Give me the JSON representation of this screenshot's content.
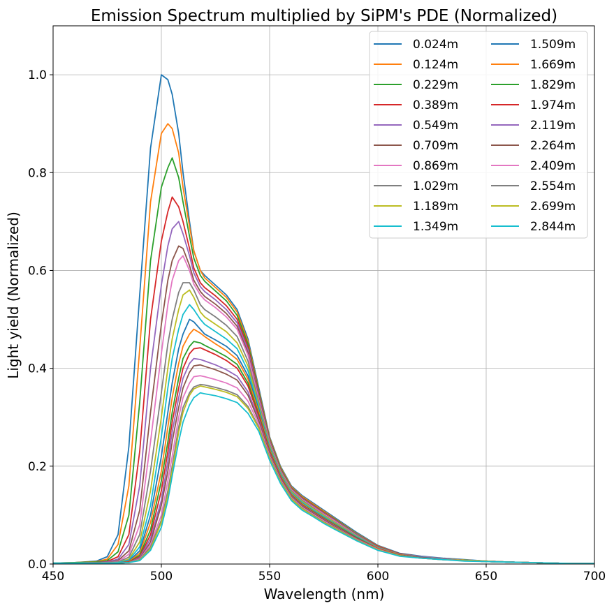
{
  "chart_data": {
    "type": "line",
    "title": "Emission Spectrum multiplied by SiPM's PDE (Normalized)",
    "xlabel": "Wavelength (nm)",
    "ylabel": "Light yield (Normalized)",
    "xlim": [
      450,
      700
    ],
    "ylim": [
      0,
      1.1
    ],
    "xticks": [
      "450",
      "500",
      "550",
      "600",
      "650",
      "700"
    ],
    "yticks": [
      "0.0",
      "0.2",
      "0.4",
      "0.6",
      "0.8",
      "1.0"
    ],
    "grid": true,
    "legend_position": "top-right",
    "legend_columns": 2,
    "x": [
      450,
      460,
      470,
      475,
      480,
      485,
      490,
      495,
      500,
      503,
      505,
      508,
      510,
      513,
      515,
      518,
      520,
      525,
      530,
      535,
      540,
      545,
      550,
      555,
      560,
      565,
      570,
      575,
      580,
      590,
      600,
      610,
      620,
      630,
      640,
      650,
      660,
      670,
      680,
      690,
      700
    ],
    "series": [
      {
        "name": "0.024m",
        "color": "#1f77b4",
        "values": [
          0.002,
          0.003,
          0.006,
          0.015,
          0.06,
          0.24,
          0.55,
          0.85,
          1.0,
          0.99,
          0.96,
          0.88,
          0.8,
          0.7,
          0.64,
          0.6,
          0.59,
          0.57,
          0.55,
          0.52,
          0.46,
          0.36,
          0.26,
          0.2,
          0.16,
          0.14,
          0.125,
          0.11,
          0.095,
          0.065,
          0.038,
          0.022,
          0.016,
          0.012,
          0.009,
          0.006,
          0.004,
          0.003,
          0.002,
          0.001,
          0.001
        ]
      },
      {
        "name": "0.124m",
        "color": "#ff7f0e",
        "values": [
          0.002,
          0.003,
          0.005,
          0.01,
          0.04,
          0.16,
          0.44,
          0.74,
          0.88,
          0.9,
          0.89,
          0.84,
          0.77,
          0.69,
          0.64,
          0.6,
          0.585,
          0.565,
          0.545,
          0.515,
          0.455,
          0.355,
          0.258,
          0.198,
          0.158,
          0.138,
          0.123,
          0.108,
          0.093,
          0.063,
          0.037,
          0.021,
          0.015,
          0.011,
          0.008,
          0.006,
          0.004,
          0.003,
          0.002,
          0.001,
          0.001
        ]
      },
      {
        "name": "0.229m",
        "color": "#2ca02c",
        "values": [
          0.002,
          0.003,
          0.004,
          0.007,
          0.025,
          0.1,
          0.33,
          0.62,
          0.77,
          0.81,
          0.83,
          0.79,
          0.74,
          0.67,
          0.625,
          0.59,
          0.578,
          0.558,
          0.538,
          0.508,
          0.45,
          0.352,
          0.256,
          0.196,
          0.156,
          0.136,
          0.121,
          0.106,
          0.092,
          0.062,
          0.036,
          0.021,
          0.015,
          0.011,
          0.008,
          0.006,
          0.004,
          0.003,
          0.002,
          0.001,
          0.001
        ]
      },
      {
        "name": "0.389m",
        "color": "#d62728",
        "values": [
          0.002,
          0.002,
          0.003,
          0.005,
          0.015,
          0.06,
          0.23,
          0.5,
          0.66,
          0.72,
          0.75,
          0.73,
          0.7,
          0.645,
          0.605,
          0.575,
          0.565,
          0.548,
          0.528,
          0.5,
          0.444,
          0.348,
          0.254,
          0.194,
          0.155,
          0.135,
          0.12,
          0.105,
          0.091,
          0.061,
          0.036,
          0.021,
          0.015,
          0.011,
          0.008,
          0.006,
          0.004,
          0.003,
          0.002,
          0.001,
          0.001
        ]
      },
      {
        "name": "0.549m",
        "color": "#9467bd",
        "values": [
          0.002,
          0.002,
          0.003,
          0.004,
          0.01,
          0.04,
          0.16,
          0.4,
          0.57,
          0.65,
          0.685,
          0.7,
          0.675,
          0.63,
          0.595,
          0.567,
          0.557,
          0.54,
          0.52,
          0.493,
          0.438,
          0.344,
          0.252,
          0.193,
          0.154,
          0.134,
          0.119,
          0.104,
          0.09,
          0.061,
          0.035,
          0.02,
          0.015,
          0.011,
          0.008,
          0.006,
          0.004,
          0.003,
          0.002,
          0.001,
          0.001
        ]
      },
      {
        "name": "0.709m",
        "color": "#8c564b",
        "values": [
          0.002,
          0.002,
          0.003,
          0.003,
          0.007,
          0.027,
          0.11,
          0.31,
          0.49,
          0.58,
          0.62,
          0.65,
          0.645,
          0.61,
          0.58,
          0.557,
          0.547,
          0.531,
          0.512,
          0.486,
          0.432,
          0.34,
          0.25,
          0.192,
          0.153,
          0.133,
          0.118,
          0.103,
          0.089,
          0.06,
          0.035,
          0.02,
          0.015,
          0.011,
          0.008,
          0.006,
          0.004,
          0.003,
          0.002,
          0.001,
          0.001
        ]
      },
      {
        "name": "0.869m",
        "color": "#e377c2",
        "values": [
          0.002,
          0.002,
          0.002,
          0.003,
          0.005,
          0.02,
          0.08,
          0.25,
          0.43,
          0.53,
          0.58,
          0.62,
          0.63,
          0.6,
          0.572,
          0.55,
          0.54,
          0.524,
          0.505,
          0.48,
          0.427,
          0.336,
          0.248,
          0.19,
          0.152,
          0.132,
          0.117,
          0.102,
          0.088,
          0.059,
          0.034,
          0.02,
          0.015,
          0.011,
          0.008,
          0.006,
          0.004,
          0.003,
          0.002,
          0.001,
          0.001
        ]
      },
      {
        "name": "1.029m",
        "color": "#7f7f7f",
        "values": [
          0.002,
          0.002,
          0.002,
          0.003,
          0.004,
          0.014,
          0.06,
          0.19,
          0.35,
          0.45,
          0.5,
          0.555,
          0.575,
          0.575,
          0.56,
          0.53,
          0.52,
          0.505,
          0.488,
          0.465,
          0.415,
          0.33,
          0.245,
          0.188,
          0.15,
          0.13,
          0.115,
          0.1,
          0.086,
          0.058,
          0.034,
          0.02,
          0.014,
          0.011,
          0.008,
          0.006,
          0.004,
          0.003,
          0.002,
          0.001,
          0.001
        ]
      },
      {
        "name": "1.189m",
        "color": "#bcbd22",
        "values": [
          0.002,
          0.002,
          0.002,
          0.002,
          0.003,
          0.01,
          0.045,
          0.15,
          0.3,
          0.4,
          0.46,
          0.52,
          0.55,
          0.56,
          0.545,
          0.515,
          0.505,
          0.49,
          0.475,
          0.452,
          0.405,
          0.325,
          0.242,
          0.186,
          0.148,
          0.128,
          0.113,
          0.099,
          0.085,
          0.057,
          0.033,
          0.019,
          0.014,
          0.01,
          0.008,
          0.006,
          0.004,
          0.003,
          0.002,
          0.001,
          0.001
        ]
      },
      {
        "name": "1.349m",
        "color": "#17becf",
        "values": [
          0.002,
          0.002,
          0.002,
          0.002,
          0.003,
          0.008,
          0.035,
          0.12,
          0.26,
          0.36,
          0.42,
          0.48,
          0.51,
          0.53,
          0.52,
          0.5,
          0.49,
          0.475,
          0.46,
          0.44,
          0.395,
          0.32,
          0.239,
          0.184,
          0.146,
          0.126,
          0.111,
          0.097,
          0.083,
          0.056,
          0.033,
          0.019,
          0.014,
          0.01,
          0.007,
          0.005,
          0.004,
          0.003,
          0.002,
          0.001,
          0.001
        ]
      },
      {
        "name": "1.509m",
        "color": "#1f77b4",
        "values": [
          0.002,
          0.002,
          0.002,
          0.002,
          0.002,
          0.006,
          0.027,
          0.1,
          0.22,
          0.31,
          0.37,
          0.44,
          0.47,
          0.5,
          0.495,
          0.48,
          0.47,
          0.458,
          0.445,
          0.426,
          0.385,
          0.315,
          0.236,
          0.182,
          0.144,
          0.124,
          0.109,
          0.095,
          0.082,
          0.055,
          0.032,
          0.019,
          0.014,
          0.01,
          0.007,
          0.005,
          0.004,
          0.003,
          0.002,
          0.001,
          0.001
        ]
      },
      {
        "name": "1.669m",
        "color": "#ff7f0e",
        "values": [
          0.002,
          0.002,
          0.002,
          0.002,
          0.002,
          0.005,
          0.022,
          0.085,
          0.19,
          0.28,
          0.34,
          0.41,
          0.445,
          0.47,
          0.48,
          0.472,
          0.465,
          0.45,
          0.436,
          0.418,
          0.378,
          0.311,
          0.234,
          0.18,
          0.143,
          0.123,
          0.108,
          0.094,
          0.081,
          0.054,
          0.032,
          0.019,
          0.013,
          0.01,
          0.007,
          0.005,
          0.004,
          0.003,
          0.002,
          0.001,
          0.001
        ]
      },
      {
        "name": "1.829m",
        "color": "#2ca02c",
        "values": [
          0.002,
          0.002,
          0.002,
          0.002,
          0.002,
          0.004,
          0.018,
          0.07,
          0.17,
          0.25,
          0.31,
          0.38,
          0.42,
          0.445,
          0.455,
          0.452,
          0.447,
          0.436,
          0.424,
          0.408,
          0.37,
          0.306,
          0.231,
          0.178,
          0.141,
          0.121,
          0.107,
          0.093,
          0.08,
          0.054,
          0.031,
          0.018,
          0.013,
          0.01,
          0.007,
          0.005,
          0.004,
          0.003,
          0.002,
          0.001,
          0.001
        ]
      },
      {
        "name": "1.974m",
        "color": "#d62728",
        "values": [
          0.002,
          0.002,
          0.002,
          0.002,
          0.002,
          0.004,
          0.015,
          0.06,
          0.15,
          0.23,
          0.29,
          0.36,
          0.4,
          0.43,
          0.44,
          0.442,
          0.438,
          0.428,
          0.416,
          0.4,
          0.364,
          0.302,
          0.229,
          0.177,
          0.14,
          0.12,
          0.106,
          0.092,
          0.079,
          0.053,
          0.031,
          0.018,
          0.013,
          0.01,
          0.007,
          0.005,
          0.004,
          0.003,
          0.002,
          0.001,
          0.001
        ]
      },
      {
        "name": "2.119m",
        "color": "#9467bd",
        "values": [
          0.002,
          0.002,
          0.002,
          0.002,
          0.002,
          0.003,
          0.013,
          0.052,
          0.13,
          0.21,
          0.27,
          0.34,
          0.38,
          0.41,
          0.42,
          0.418,
          0.415,
          0.407,
          0.397,
          0.384,
          0.352,
          0.296,
          0.226,
          0.175,
          0.139,
          0.119,
          0.105,
          0.091,
          0.078,
          0.052,
          0.03,
          0.018,
          0.013,
          0.01,
          0.007,
          0.005,
          0.004,
          0.003,
          0.002,
          0.001,
          0.001
        ]
      },
      {
        "name": "2.264m",
        "color": "#8c564b",
        "values": [
          0.002,
          0.002,
          0.002,
          0.002,
          0.002,
          0.003,
          0.011,
          0.045,
          0.12,
          0.19,
          0.25,
          0.32,
          0.36,
          0.392,
          0.405,
          0.407,
          0.404,
          0.397,
          0.388,
          0.376,
          0.345,
          0.292,
          0.224,
          0.174,
          0.138,
          0.118,
          0.104,
          0.09,
          0.077,
          0.052,
          0.03,
          0.018,
          0.013,
          0.009,
          0.007,
          0.005,
          0.004,
          0.003,
          0.002,
          0.001,
          0.001
        ]
      },
      {
        "name": "2.409m",
        "color": "#e377c2",
        "values": [
          0.002,
          0.002,
          0.002,
          0.002,
          0.002,
          0.003,
          0.01,
          0.04,
          0.1,
          0.17,
          0.22,
          0.3,
          0.34,
          0.37,
          0.383,
          0.385,
          0.383,
          0.377,
          0.37,
          0.36,
          0.333,
          0.286,
          0.221,
          0.172,
          0.136,
          0.116,
          0.102,
          0.088,
          0.075,
          0.051,
          0.03,
          0.017,
          0.012,
          0.009,
          0.007,
          0.005,
          0.004,
          0.003,
          0.002,
          0.001,
          0.001
        ]
      },
      {
        "name": "2.554m",
        "color": "#7f7f7f",
        "values": [
          0.002,
          0.002,
          0.002,
          0.002,
          0.002,
          0.003,
          0.009,
          0.035,
          0.09,
          0.15,
          0.2,
          0.28,
          0.32,
          0.35,
          0.362,
          0.367,
          0.366,
          0.361,
          0.355,
          0.346,
          0.322,
          0.28,
          0.218,
          0.17,
          0.134,
          0.114,
          0.1,
          0.086,
          0.074,
          0.05,
          0.029,
          0.017,
          0.012,
          0.009,
          0.007,
          0.005,
          0.004,
          0.003,
          0.002,
          0.001,
          0.001
        ]
      },
      {
        "name": "2.699m",
        "color": "#bcbd22",
        "values": [
          0.002,
          0.002,
          0.002,
          0.002,
          0.002,
          0.003,
          0.008,
          0.031,
          0.085,
          0.14,
          0.19,
          0.27,
          0.31,
          0.345,
          0.358,
          0.364,
          0.362,
          0.357,
          0.351,
          0.342,
          0.318,
          0.277,
          0.216,
          0.168,
          0.133,
          0.113,
          0.099,
          0.085,
          0.073,
          0.049,
          0.029,
          0.017,
          0.012,
          0.009,
          0.007,
          0.005,
          0.004,
          0.003,
          0.002,
          0.001,
          0.001
        ]
      },
      {
        "name": "2.844m",
        "color": "#17becf",
        "values": [
          0.002,
          0.002,
          0.002,
          0.002,
          0.002,
          0.003,
          0.007,
          0.028,
          0.075,
          0.13,
          0.18,
          0.25,
          0.29,
          0.325,
          0.34,
          0.35,
          0.348,
          0.344,
          0.338,
          0.33,
          0.308,
          0.271,
          0.212,
          0.165,
          0.13,
          0.11,
          0.097,
          0.083,
          0.071,
          0.048,
          0.028,
          0.016,
          0.012,
          0.009,
          0.006,
          0.005,
          0.004,
          0.003,
          0.002,
          0.001,
          0.001
        ]
      }
    ]
  }
}
